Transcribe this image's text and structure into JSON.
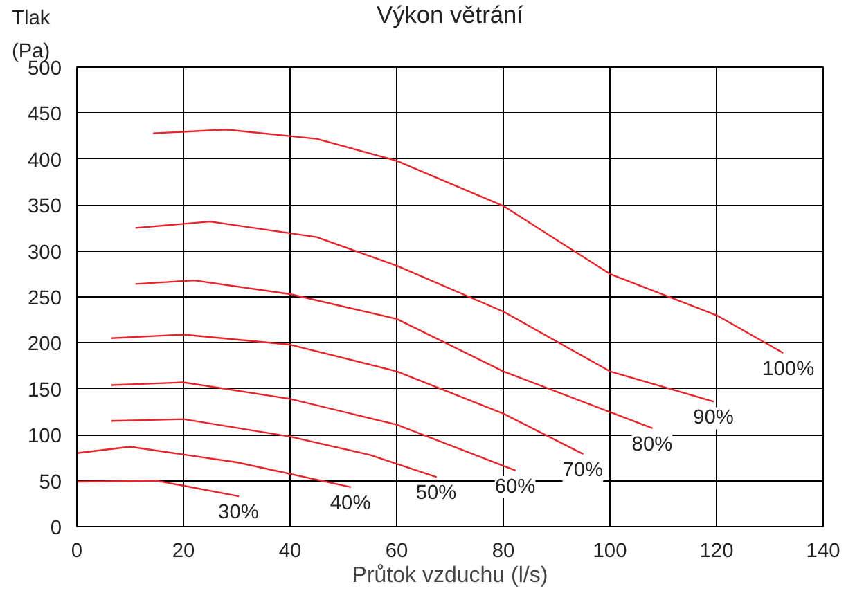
{
  "chart_data": {
    "type": "line",
    "title": "Výkon větrání",
    "xlabel": "Průtok vzduchu (l/s)",
    "ylabel": "Tlak\n(Pa)",
    "xlim": [
      0,
      140
    ],
    "xticks": [
      0,
      20,
      40,
      60,
      80,
      100,
      120,
      140
    ],
    "ylim": [
      0,
      500
    ],
    "yticks": [
      0,
      50,
      100,
      150,
      200,
      250,
      300,
      350,
      400,
      450,
      500
    ],
    "grid": true,
    "line_style": "solid",
    "series": [
      {
        "name": "100%",
        "color": "#e8232a",
        "x": [
          14.3,
          28,
          45,
          60,
          80,
          100,
          120,
          132.5
        ],
        "values": [
          428,
          432,
          422,
          398,
          349,
          275,
          230,
          189
        ]
      },
      {
        "name": "90%",
        "color": "#e8232a",
        "x": [
          11,
          25,
          45,
          60,
          80,
          100,
          119.5
        ],
        "values": [
          325,
          332,
          315,
          284,
          234,
          169,
          136
        ]
      },
      {
        "name": "80%",
        "color": "#e8232a",
        "x": [
          11,
          22,
          40,
          60,
          80,
          108
        ],
        "values": [
          264,
          268,
          253,
          226,
          169,
          107
        ]
      },
      {
        "name": "70%",
        "color": "#e8232a",
        "x": [
          6.5,
          20,
          40,
          60,
          80,
          95
        ],
        "values": [
          205,
          209,
          198,
          169,
          123,
          79
        ]
      },
      {
        "name": "60%",
        "color": "#e8232a",
        "x": [
          6.5,
          20,
          40,
          60,
          82.3
        ],
        "values": [
          154,
          157,
          139,
          111,
          61
        ]
      },
      {
        "name": "50%",
        "color": "#e8232a",
        "x": [
          6.5,
          20,
          40,
          55,
          67.5
        ],
        "values": [
          115,
          117,
          98,
          78,
          54
        ]
      },
      {
        "name": "40%",
        "color": "#e8232a",
        "x": [
          0,
          10,
          30,
          51.4
        ],
        "values": [
          80,
          87,
          70,
          43
        ]
      },
      {
        "name": "30%",
        "color": "#e8232a",
        "x": [
          0,
          15,
          30.4
        ],
        "values": [
          49,
          50,
          33
        ]
      }
    ]
  }
}
